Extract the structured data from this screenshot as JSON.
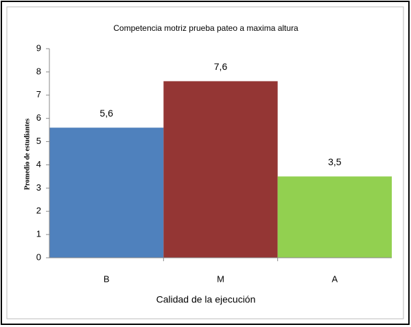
{
  "chart_data": {
    "type": "bar",
    "title": "Competencia motriz prueba pateo a maxima altura",
    "x_label": "Calidad de la ejecución",
    "y_label": "Promedio de estudiantes",
    "categories": [
      "B",
      "M",
      "A"
    ],
    "values": [
      5.6,
      7.6,
      3.5
    ],
    "value_labels": [
      "5,6",
      "7,6",
      "3,5"
    ],
    "colors": [
      "#4f81bd",
      "#943634",
      "#92d050"
    ],
    "ylim": [
      0,
      9
    ],
    "yticks": [
      0,
      1,
      2,
      3,
      4,
      5,
      6,
      7,
      8,
      9
    ],
    "grid": false
  }
}
